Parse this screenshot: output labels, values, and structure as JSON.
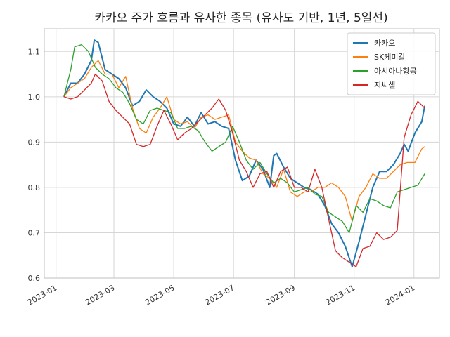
{
  "chart_data": {
    "type": "line",
    "title": "카카오 주가 흐름과 유사한 종목 (유사도 기반, 1년, 5일선)",
    "xlabel": "",
    "ylabel": "",
    "ylim": [
      0.6,
      1.15
    ],
    "xlim": [
      "2022-12-20",
      "2024-01-27"
    ],
    "y_ticks": [
      0.6,
      0.7,
      0.8,
      0.9,
      1.0,
      1.1
    ],
    "y_tick_labels": [
      "0.6",
      "0.7",
      "0.8",
      "0.9",
      "1.0",
      "1.1"
    ],
    "x_ticks": [
      "2023-01-01",
      "2023-03-01",
      "2023-05-01",
      "2023-07-01",
      "2023-09-01",
      "2023-11-01",
      "2024-01-01"
    ],
    "x_tick_labels": [
      "2023‑01",
      "2023‑03",
      "2023‑05",
      "2023‑07",
      "2023‑09",
      "2023‑11",
      "2024‑01"
    ],
    "grid": true,
    "legend_position": "top-right",
    "series": [
      {
        "name": "카카오",
        "color": "#1f77b4",
        "points": [
          [
            "2023-01-09",
            1.0
          ],
          [
            "2023-01-16",
            1.03
          ],
          [
            "2023-01-23",
            1.03
          ],
          [
            "2023-01-30",
            1.05
          ],
          [
            "2023-02-06",
            1.08
          ],
          [
            "2023-02-09",
            1.125
          ],
          [
            "2023-02-13",
            1.12
          ],
          [
            "2023-02-20",
            1.06
          ],
          [
            "2023-02-27",
            1.05
          ],
          [
            "2023-03-06",
            1.04
          ],
          [
            "2023-03-13",
            1.02
          ],
          [
            "2023-03-20",
            0.98
          ],
          [
            "2023-03-27",
            0.99
          ],
          [
            "2023-04-03",
            1.015
          ],
          [
            "2023-04-10",
            1.0
          ],
          [
            "2023-04-17",
            0.99
          ],
          [
            "2023-04-24",
            0.975
          ],
          [
            "2023-05-01",
            0.94
          ],
          [
            "2023-05-08",
            0.935
          ],
          [
            "2023-05-15",
            0.955
          ],
          [
            "2023-05-22",
            0.935
          ],
          [
            "2023-05-29",
            0.965
          ],
          [
            "2023-06-05",
            0.94
          ],
          [
            "2023-06-12",
            0.945
          ],
          [
            "2023-06-19",
            0.935
          ],
          [
            "2023-06-26",
            0.93
          ],
          [
            "2023-07-03",
            0.86
          ],
          [
            "2023-07-10",
            0.815
          ],
          [
            "2023-07-17",
            0.825
          ],
          [
            "2023-07-24",
            0.86
          ],
          [
            "2023-07-31",
            0.84
          ],
          [
            "2023-08-07",
            0.8
          ],
          [
            "2023-08-11",
            0.87
          ],
          [
            "2023-08-14",
            0.875
          ],
          [
            "2023-08-21",
            0.845
          ],
          [
            "2023-08-28",
            0.82
          ],
          [
            "2023-09-04",
            0.81
          ],
          [
            "2023-09-11",
            0.8
          ],
          [
            "2023-09-18",
            0.795
          ],
          [
            "2023-09-25",
            0.785
          ],
          [
            "2023-10-02",
            0.76
          ],
          [
            "2023-10-09",
            0.72
          ],
          [
            "2023-10-16",
            0.7
          ],
          [
            "2023-10-23",
            0.67
          ],
          [
            "2023-10-30",
            0.625
          ],
          [
            "2023-11-06",
            0.68
          ],
          [
            "2023-11-13",
            0.74
          ],
          [
            "2023-11-20",
            0.8
          ],
          [
            "2023-11-27",
            0.835
          ],
          [
            "2023-12-04",
            0.835
          ],
          [
            "2023-12-11",
            0.85
          ],
          [
            "2023-12-18",
            0.875
          ],
          [
            "2023-12-22",
            0.895
          ],
          [
            "2023-12-26",
            0.88
          ],
          [
            "2024-01-02",
            0.92
          ],
          [
            "2024-01-09",
            0.945
          ],
          [
            "2024-01-12",
            0.98
          ]
        ]
      },
      {
        "name": "SK케미칼",
        "color": "#ff7f0e",
        "points": [
          [
            "2023-01-09",
            1.0
          ],
          [
            "2023-01-16",
            1.02
          ],
          [
            "2023-01-23",
            1.03
          ],
          [
            "2023-01-30",
            1.04
          ],
          [
            "2023-02-06",
            1.065
          ],
          [
            "2023-02-13",
            1.08
          ],
          [
            "2023-02-20",
            1.05
          ],
          [
            "2023-02-27",
            1.05
          ],
          [
            "2023-03-06",
            1.02
          ],
          [
            "2023-03-13",
            1.045
          ],
          [
            "2023-03-20",
            0.975
          ],
          [
            "2023-03-27",
            0.93
          ],
          [
            "2023-04-03",
            0.92
          ],
          [
            "2023-04-10",
            0.955
          ],
          [
            "2023-04-17",
            0.975
          ],
          [
            "2023-04-24",
            1.0
          ],
          [
            "2023-05-01",
            0.95
          ],
          [
            "2023-05-08",
            0.94
          ],
          [
            "2023-05-15",
            0.945
          ],
          [
            "2023-05-22",
            0.93
          ],
          [
            "2023-05-29",
            0.955
          ],
          [
            "2023-06-05",
            0.96
          ],
          [
            "2023-06-12",
            0.95
          ],
          [
            "2023-06-19",
            0.955
          ],
          [
            "2023-06-26",
            0.96
          ],
          [
            "2023-07-03",
            0.9
          ],
          [
            "2023-07-10",
            0.88
          ],
          [
            "2023-07-17",
            0.865
          ],
          [
            "2023-07-24",
            0.86
          ],
          [
            "2023-07-31",
            0.83
          ],
          [
            "2023-08-07",
            0.82
          ],
          [
            "2023-08-14",
            0.8
          ],
          [
            "2023-08-21",
            0.84
          ],
          [
            "2023-08-28",
            0.79
          ],
          [
            "2023-09-04",
            0.78
          ],
          [
            "2023-09-11",
            0.79
          ],
          [
            "2023-09-18",
            0.79
          ],
          [
            "2023-09-25",
            0.8
          ],
          [
            "2023-10-02",
            0.8
          ],
          [
            "2023-10-09",
            0.81
          ],
          [
            "2023-10-16",
            0.8
          ],
          [
            "2023-10-23",
            0.78
          ],
          [
            "2023-10-30",
            0.725
          ],
          [
            "2023-11-06",
            0.78
          ],
          [
            "2023-11-13",
            0.8
          ],
          [
            "2023-11-20",
            0.83
          ],
          [
            "2023-11-27",
            0.82
          ],
          [
            "2023-12-04",
            0.82
          ],
          [
            "2023-12-11",
            0.835
          ],
          [
            "2023-12-18",
            0.85
          ],
          [
            "2023-12-25",
            0.855
          ],
          [
            "2024-01-02",
            0.855
          ],
          [
            "2024-01-09",
            0.885
          ],
          [
            "2024-01-12",
            0.89
          ]
        ]
      },
      {
        "name": "아시아나항공",
        "color": "#2ca02c",
        "points": [
          [
            "2023-01-09",
            1.0
          ],
          [
            "2023-01-16",
            1.06
          ],
          [
            "2023-01-20",
            1.11
          ],
          [
            "2023-01-27",
            1.115
          ],
          [
            "2023-02-03",
            1.1
          ],
          [
            "2023-02-10",
            1.065
          ],
          [
            "2023-02-17",
            1.05
          ],
          [
            "2023-02-24",
            1.04
          ],
          [
            "2023-03-03",
            1.02
          ],
          [
            "2023-03-10",
            1.01
          ],
          [
            "2023-03-17",
            0.985
          ],
          [
            "2023-03-24",
            0.95
          ],
          [
            "2023-03-31",
            0.94
          ],
          [
            "2023-04-07",
            0.97
          ],
          [
            "2023-04-14",
            0.975
          ],
          [
            "2023-04-21",
            0.97
          ],
          [
            "2023-04-28",
            0.965
          ],
          [
            "2023-05-05",
            0.93
          ],
          [
            "2023-05-12",
            0.93
          ],
          [
            "2023-05-19",
            0.935
          ],
          [
            "2023-05-26",
            0.925
          ],
          [
            "2023-06-02",
            0.9
          ],
          [
            "2023-06-09",
            0.88
          ],
          [
            "2023-06-16",
            0.89
          ],
          [
            "2023-06-23",
            0.9
          ],
          [
            "2023-06-30",
            0.935
          ],
          [
            "2023-07-07",
            0.9
          ],
          [
            "2023-07-14",
            0.86
          ],
          [
            "2023-07-21",
            0.84
          ],
          [
            "2023-07-28",
            0.855
          ],
          [
            "2023-08-04",
            0.83
          ],
          [
            "2023-08-11",
            0.81
          ],
          [
            "2023-08-18",
            0.82
          ],
          [
            "2023-08-25",
            0.81
          ],
          [
            "2023-09-01",
            0.79
          ],
          [
            "2023-09-08",
            0.795
          ],
          [
            "2023-09-15",
            0.8
          ],
          [
            "2023-09-22",
            0.785
          ],
          [
            "2023-09-29",
            0.78
          ],
          [
            "2023-10-06",
            0.745
          ],
          [
            "2023-10-13",
            0.735
          ],
          [
            "2023-10-20",
            0.725
          ],
          [
            "2023-10-27",
            0.7
          ],
          [
            "2023-11-03",
            0.76
          ],
          [
            "2023-11-10",
            0.745
          ],
          [
            "2023-11-17",
            0.775
          ],
          [
            "2023-11-24",
            0.77
          ],
          [
            "2023-12-01",
            0.76
          ],
          [
            "2023-12-08",
            0.755
          ],
          [
            "2023-12-15",
            0.79
          ],
          [
            "2023-12-22",
            0.795
          ],
          [
            "2023-12-29",
            0.8
          ],
          [
            "2024-01-05",
            0.805
          ],
          [
            "2024-01-12",
            0.83
          ]
        ]
      },
      {
        "name": "지씨셀",
        "color": "#d62728",
        "points": [
          [
            "2023-01-09",
            1.0
          ],
          [
            "2023-01-16",
            0.995
          ],
          [
            "2023-01-23",
            1.0
          ],
          [
            "2023-01-30",
            1.015
          ],
          [
            "2023-02-06",
            1.03
          ],
          [
            "2023-02-10",
            1.05
          ],
          [
            "2023-02-17",
            1.035
          ],
          [
            "2023-02-24",
            0.99
          ],
          [
            "2023-03-03",
            0.97
          ],
          [
            "2023-03-10",
            0.955
          ],
          [
            "2023-03-17",
            0.94
          ],
          [
            "2023-03-24",
            0.895
          ],
          [
            "2023-03-31",
            0.89
          ],
          [
            "2023-04-07",
            0.895
          ],
          [
            "2023-04-14",
            0.935
          ],
          [
            "2023-04-21",
            0.97
          ],
          [
            "2023-04-28",
            0.94
          ],
          [
            "2023-05-05",
            0.905
          ],
          [
            "2023-05-12",
            0.92
          ],
          [
            "2023-05-19",
            0.93
          ],
          [
            "2023-05-26",
            0.945
          ],
          [
            "2023-06-02",
            0.96
          ],
          [
            "2023-06-09",
            0.975
          ],
          [
            "2023-06-16",
            0.995
          ],
          [
            "2023-06-23",
            0.97
          ],
          [
            "2023-06-30",
            0.92
          ],
          [
            "2023-07-07",
            0.86
          ],
          [
            "2023-07-14",
            0.835
          ],
          [
            "2023-07-21",
            0.8
          ],
          [
            "2023-07-28",
            0.83
          ],
          [
            "2023-08-04",
            0.835
          ],
          [
            "2023-08-11",
            0.8
          ],
          [
            "2023-08-18",
            0.835
          ],
          [
            "2023-08-25",
            0.845
          ],
          [
            "2023-09-01",
            0.8
          ],
          [
            "2023-09-08",
            0.8
          ],
          [
            "2023-09-15",
            0.79
          ],
          [
            "2023-09-22",
            0.84
          ],
          [
            "2023-09-29",
            0.8
          ],
          [
            "2023-10-06",
            0.73
          ],
          [
            "2023-10-13",
            0.66
          ],
          [
            "2023-10-20",
            0.645
          ],
          [
            "2023-10-27",
            0.635
          ],
          [
            "2023-11-03",
            0.625
          ],
          [
            "2023-11-10",
            0.665
          ],
          [
            "2023-11-17",
            0.67
          ],
          [
            "2023-11-24",
            0.7
          ],
          [
            "2023-12-01",
            0.685
          ],
          [
            "2023-12-08",
            0.69
          ],
          [
            "2023-12-15",
            0.705
          ],
          [
            "2023-12-22",
            0.91
          ],
          [
            "2023-12-29",
            0.96
          ],
          [
            "2024-01-05",
            0.99
          ],
          [
            "2024-01-12",
            0.975
          ]
        ]
      }
    ]
  }
}
